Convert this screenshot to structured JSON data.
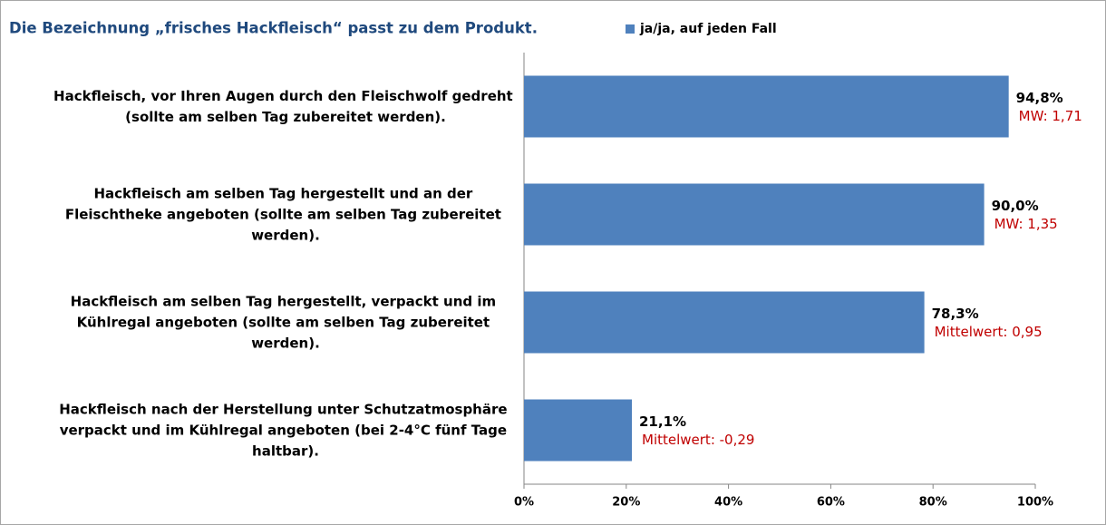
{
  "chart_data": {
    "type": "hbar",
    "title": "Die Bezeichnung „frisches Hackfleisch“ passt zu dem Produkt.",
    "categories": [
      "Hackfleisch, vor Ihren Augen durch den Fleischwolf gedreht (sollte am selben Tag zubereitet werden).",
      "Hackfleisch am selben Tag hergestellt und an der Fleischtheke angeboten (sollte am selben Tag zubereitet werden).",
      "Hackfleisch am selben Tag hergestellt, verpackt und im Kühlregal angeboten (sollte am selben Tag zubereitet werden).",
      "Hackfleisch nach der Herstellung unter Schutzatmosphäre verpackt und im Kühlregal angeboten (bei 2-4°C fünf Tage haltbar)."
    ],
    "series": [
      {
        "name": "ja/ja, auf jeden Fall",
        "color": "#4f81bd",
        "values": [
          94.8,
          90.0,
          78.3,
          21.1
        ],
        "value_labels": [
          "94,8%",
          "90,0%",
          "78,3%",
          "21,1%"
        ]
      }
    ],
    "annotations": [
      "MW: 1,71",
      "MW: 1,35",
      "Mittelwert: 0,95",
      "Mittelwert: -0,29"
    ],
    "annotation_color": "#c00000",
    "title_color": "#1f497d",
    "xlim": [
      0,
      100
    ],
    "xticks": [
      {
        "value": 0,
        "label": "0%"
      },
      {
        "value": 20,
        "label": "20%"
      },
      {
        "value": 40,
        "label": "40%"
      },
      {
        "value": 60,
        "label": "60%"
      },
      {
        "value": 80,
        "label": "80%"
      },
      {
        "value": 100,
        "label": "100%"
      }
    ],
    "grid": false,
    "legend": "top"
  }
}
